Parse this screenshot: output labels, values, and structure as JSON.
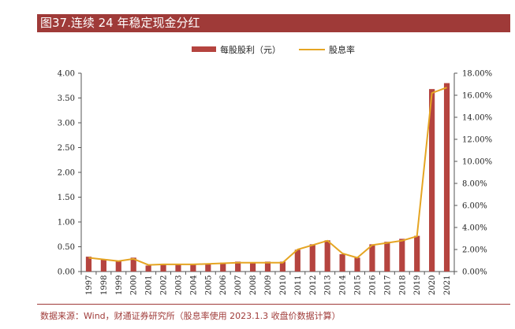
{
  "title": "图37.连续 24 年稳定现金分红",
  "source": "数据来源：Wind，财通证券研究所（股息率使用 2023.1.3 收盘价数据计算）",
  "colors": {
    "bar": "#b5443f",
    "line": "#e5a523",
    "title_bg": "#9f3a38"
  },
  "chart_data": {
    "type": "bar",
    "categories": [
      "1997",
      "1998",
      "1999",
      "2000",
      "2001",
      "2002",
      "2003",
      "2004",
      "2005",
      "2006",
      "2007",
      "2008",
      "2009",
      "2010",
      "2011",
      "2012",
      "2013",
      "2014",
      "2015",
      "2016",
      "2017",
      "2018",
      "2019",
      "2020",
      "2021"
    ],
    "series": [
      {
        "name": "每股股利（元）",
        "type": "bar",
        "axis": "left",
        "values": [
          0.3,
          0.25,
          0.22,
          0.28,
          0.12,
          0.14,
          0.14,
          0.15,
          0.16,
          0.18,
          0.2,
          0.19,
          0.2,
          0.2,
          0.44,
          0.55,
          0.63,
          0.35,
          0.28,
          0.55,
          0.6,
          0.66,
          0.72,
          3.68,
          3.8
        ]
      },
      {
        "name": "股息率",
        "type": "line",
        "axis": "right",
        "values": [
          1.25,
          1.1,
          0.95,
          1.15,
          0.6,
          0.65,
          0.65,
          0.65,
          0.7,
          0.75,
          0.8,
          0.8,
          0.8,
          0.8,
          2.0,
          2.4,
          2.8,
          1.65,
          1.25,
          2.4,
          2.6,
          2.8,
          3.2,
          16.2,
          16.7
        ]
      }
    ],
    "y_left": {
      "lim": [
        0,
        4.0
      ],
      "ticks": [
        "0.00",
        "0.50",
        "1.00",
        "1.50",
        "2.00",
        "2.50",
        "3.00",
        "3.50",
        "4.00"
      ]
    },
    "y_right": {
      "lim": [
        0,
        18
      ],
      "ticks": [
        "0.00%",
        "2.00%",
        "4.00%",
        "6.00%",
        "8.00%",
        "10.00%",
        "12.00%",
        "14.00%",
        "16.00%",
        "18.00%"
      ]
    },
    "grid": false,
    "legend": "top-center"
  }
}
